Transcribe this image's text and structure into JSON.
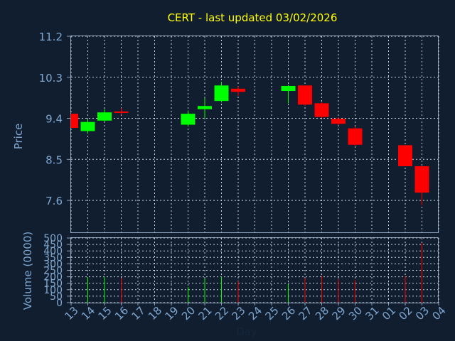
{
  "chart_data": [
    {
      "type": "candlestick",
      "title": "CERT - last updated 03/02/2026",
      "ylabel": "Price",
      "ylim": [
        6.9,
        11.2
      ],
      "yticks": [
        "11.2",
        "10.3",
        "9.4",
        "8.5",
        "7.6"
      ],
      "grid": true,
      "colors": {
        "up": "#00ff00",
        "down": "#ff0000",
        "title": "#ffff00",
        "axis_text": "#7fa7d0"
      },
      "candles": [
        {
          "day": "13",
          "open": 9.5,
          "high": 9.5,
          "low": 9.19,
          "close": 9.19
        },
        {
          "day": "14",
          "open": 9.12,
          "high": 9.38,
          "low": 9.07,
          "close": 9.32
        },
        {
          "day": "15",
          "open": 9.35,
          "high": 9.6,
          "low": 9.32,
          "close": 9.53
        },
        {
          "day": "16",
          "open": 9.55,
          "high": 9.62,
          "low": 9.48,
          "close": 9.52
        },
        {
          "day": "20",
          "open": 9.26,
          "high": 9.57,
          "low": 9.22,
          "close": 9.5
        },
        {
          "day": "21",
          "open": 9.6,
          "high": 9.85,
          "low": 9.4,
          "close": 9.67
        },
        {
          "day": "22",
          "open": 9.78,
          "high": 10.2,
          "low": 9.75,
          "close": 10.12
        },
        {
          "day": "23",
          "open": 10.05,
          "high": 10.1,
          "low": 9.9,
          "close": 9.98
        },
        {
          "day": "26",
          "open": 10.0,
          "high": 10.13,
          "low": 9.73,
          "close": 10.11
        },
        {
          "day": "27",
          "open": 10.12,
          "high": 10.12,
          "low": 9.68,
          "close": 9.7
        },
        {
          "day": "28",
          "open": 9.73,
          "high": 9.75,
          "low": 9.4,
          "close": 9.43
        },
        {
          "day": "29",
          "open": 9.39,
          "high": 9.42,
          "low": 9.25,
          "close": 9.28
        },
        {
          "day": "30",
          "open": 9.18,
          "high": 9.22,
          "low": 8.8,
          "close": 8.82
        },
        {
          "day": "02",
          "open": 8.81,
          "high": 8.81,
          "low": 8.35,
          "close": 8.35
        },
        {
          "day": "03",
          "open": 8.35,
          "high": 8.35,
          "low": 7.5,
          "close": 7.77
        }
      ]
    },
    {
      "type": "bar",
      "ylabel": "Volume (0000)",
      "xlabel": "Day",
      "ylim": [
        0,
        500
      ],
      "yticks": [
        "500",
        "450",
        "400",
        "350",
        "300",
        "250",
        "200",
        "150",
        "100",
        "50",
        "0"
      ],
      "x_categories": [
        "13",
        "14",
        "15",
        "16",
        "17",
        "18",
        "19",
        "20",
        "21",
        "22",
        "23",
        "24",
        "25",
        "26",
        "27",
        "28",
        "29",
        "30",
        "31",
        "01",
        "02",
        "03",
        "04"
      ],
      "bars": [
        {
          "day": "14",
          "value": 195,
          "direction": "up"
        },
        {
          "day": "15",
          "value": 200,
          "direction": "up"
        },
        {
          "day": "16",
          "value": 190,
          "direction": "down"
        },
        {
          "day": "20",
          "value": 120,
          "direction": "up"
        },
        {
          "day": "21",
          "value": 185,
          "direction": "up"
        },
        {
          "day": "22",
          "value": 200,
          "direction": "up"
        },
        {
          "day": "23",
          "value": 165,
          "direction": "down"
        },
        {
          "day": "26",
          "value": 140,
          "direction": "up"
        },
        {
          "day": "27",
          "value": 190,
          "direction": "down"
        },
        {
          "day": "28",
          "value": 205,
          "direction": "down"
        },
        {
          "day": "29",
          "value": 180,
          "direction": "down"
        },
        {
          "day": "30",
          "value": 175,
          "direction": "down"
        },
        {
          "day": "02",
          "value": 205,
          "direction": "down"
        },
        {
          "day": "03",
          "value": 460,
          "direction": "down"
        }
      ]
    }
  ]
}
